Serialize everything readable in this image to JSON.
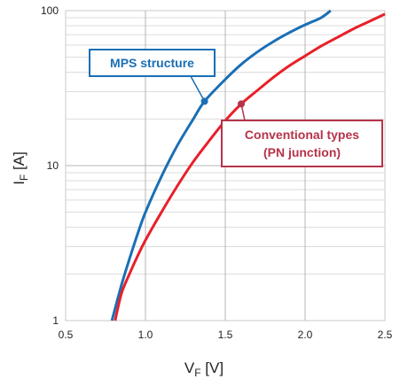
{
  "chart_data": {
    "type": "line",
    "xlabel": {
      "main": "V",
      "sub": "F",
      "unit": " [V]"
    },
    "ylabel": {
      "main": "I",
      "sub": "F",
      "unit": " [A]"
    },
    "xlim": [
      0.5,
      2.5
    ],
    "ylim": [
      1,
      100
    ],
    "y_scale": "log",
    "grid": true,
    "x_ticks": [
      "0.5",
      "1.0",
      "1.5",
      "2.0",
      "2.5"
    ],
    "y_ticks": [
      "1",
      "10",
      "100"
    ],
    "series": [
      {
        "name": "MPS structure",
        "color": "#1a6fb5",
        "x": [
          0.79,
          0.85,
          0.9,
          0.95,
          1.0,
          1.1,
          1.2,
          1.3,
          1.37,
          1.5,
          1.6,
          1.7,
          1.8,
          1.9,
          2.0,
          2.1,
          2.16
        ],
        "y": [
          1.0,
          1.7,
          2.5,
          3.6,
          5.0,
          8.5,
          13.5,
          20,
          26,
          36,
          45,
          54,
          63,
          72,
          81,
          90,
          100
        ]
      },
      {
        "name": "Conventional types (PN junction)",
        "color": "#e8202a",
        "x": [
          0.81,
          0.85,
          0.9,
          0.95,
          1.0,
          1.1,
          1.2,
          1.3,
          1.4,
          1.5,
          1.6,
          1.7,
          1.8,
          1.9,
          2.0,
          2.1,
          2.2,
          2.3,
          2.4,
          2.5
        ],
        "y": [
          1.0,
          1.5,
          2.0,
          2.6,
          3.3,
          5.0,
          7.4,
          10.6,
          14.5,
          19.5,
          25.0,
          30.5,
          37,
          44,
          51,
          59,
          67,
          76,
          85,
          95
        ]
      }
    ],
    "annotations": [
      {
        "text_lines": [
          "MPS structure"
        ],
        "color": "#1a6fb5",
        "point": [
          1.37,
          26
        ]
      },
      {
        "text_lines": [
          "Conventional types",
          "(PN junction)"
        ],
        "color": "#b5334a",
        "point": [
          1.6,
          25
        ]
      }
    ]
  }
}
